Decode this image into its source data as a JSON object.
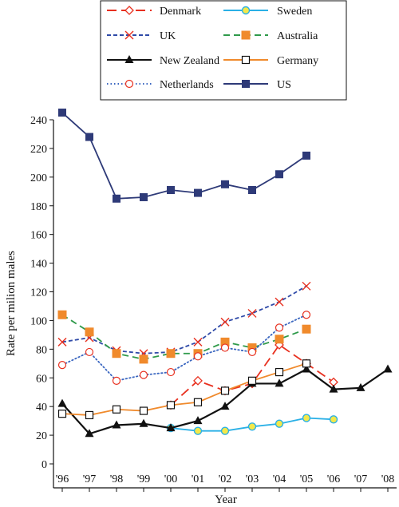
{
  "chart_data": {
    "type": "line",
    "title": "",
    "xlabel": "Year",
    "ylabel": "Rate per milion males",
    "categories": [
      "'96",
      "'97",
      "'98",
      "'99",
      "'00",
      "'01",
      "'02",
      "'03",
      "'04",
      "'05",
      "'06",
      "'07",
      "'08"
    ],
    "ylim": [
      0,
      240
    ],
    "yticks": [
      0,
      20,
      40,
      60,
      80,
      100,
      120,
      140,
      160,
      180,
      200,
      220,
      240
    ],
    "grid": false,
    "legend_position": "top",
    "series": [
      {
        "name": "Denmark",
        "color": "#e8301f",
        "dash": "long-dash",
        "marker": "diamond-open",
        "values": [
          null,
          null,
          null,
          null,
          41,
          58,
          51,
          56,
          83,
          70,
          57,
          null,
          null
        ]
      },
      {
        "name": "Sweden",
        "color": "#2ab0e6",
        "dash": "solid",
        "marker": "circle-filled-yellow",
        "values": [
          null,
          null,
          null,
          null,
          25,
          23,
          23,
          26,
          28,
          32,
          31,
          null,
          null
        ]
      },
      {
        "name": "UK",
        "color": "#2f4aa8",
        "dash": "short-dash",
        "marker": "x-red",
        "values": [
          85,
          88,
          79,
          77,
          78,
          85,
          99,
          105,
          113,
          124,
          null,
          null,
          null
        ]
      },
      {
        "name": "Australia",
        "color": "#2f9a4a",
        "dash": "dash",
        "marker": "square-orange",
        "values": [
          104,
          92,
          77,
          73,
          77,
          77,
          85,
          81,
          87,
          94,
          null,
          null,
          null
        ]
      },
      {
        "name": "New Zealand",
        "color": "#111111",
        "dash": "solid",
        "marker": "triangle-filled",
        "values": [
          42,
          21,
          27,
          28,
          25,
          30,
          40,
          56,
          56,
          66,
          52,
          53,
          66
        ]
      },
      {
        "name": "Germany",
        "color": "#f08a2c",
        "dash": "solid",
        "marker": "square-open",
        "values": [
          35,
          34,
          38,
          37,
          41,
          43,
          51,
          58,
          64,
          70,
          null,
          null,
          null
        ]
      },
      {
        "name": "Netherlands",
        "color": "#3a66c0",
        "dash": "dot",
        "marker": "circle-open-red",
        "values": [
          69,
          78,
          58,
          62,
          64,
          75,
          81,
          78,
          95,
          104,
          null,
          null,
          null
        ]
      },
      {
        "name": "US",
        "color": "#2e3a78",
        "dash": "solid",
        "marker": "square-filled-navy",
        "values": [
          245,
          228,
          185,
          186,
          191,
          189,
          195,
          191,
          202,
          215,
          null,
          null,
          null
        ]
      }
    ]
  }
}
